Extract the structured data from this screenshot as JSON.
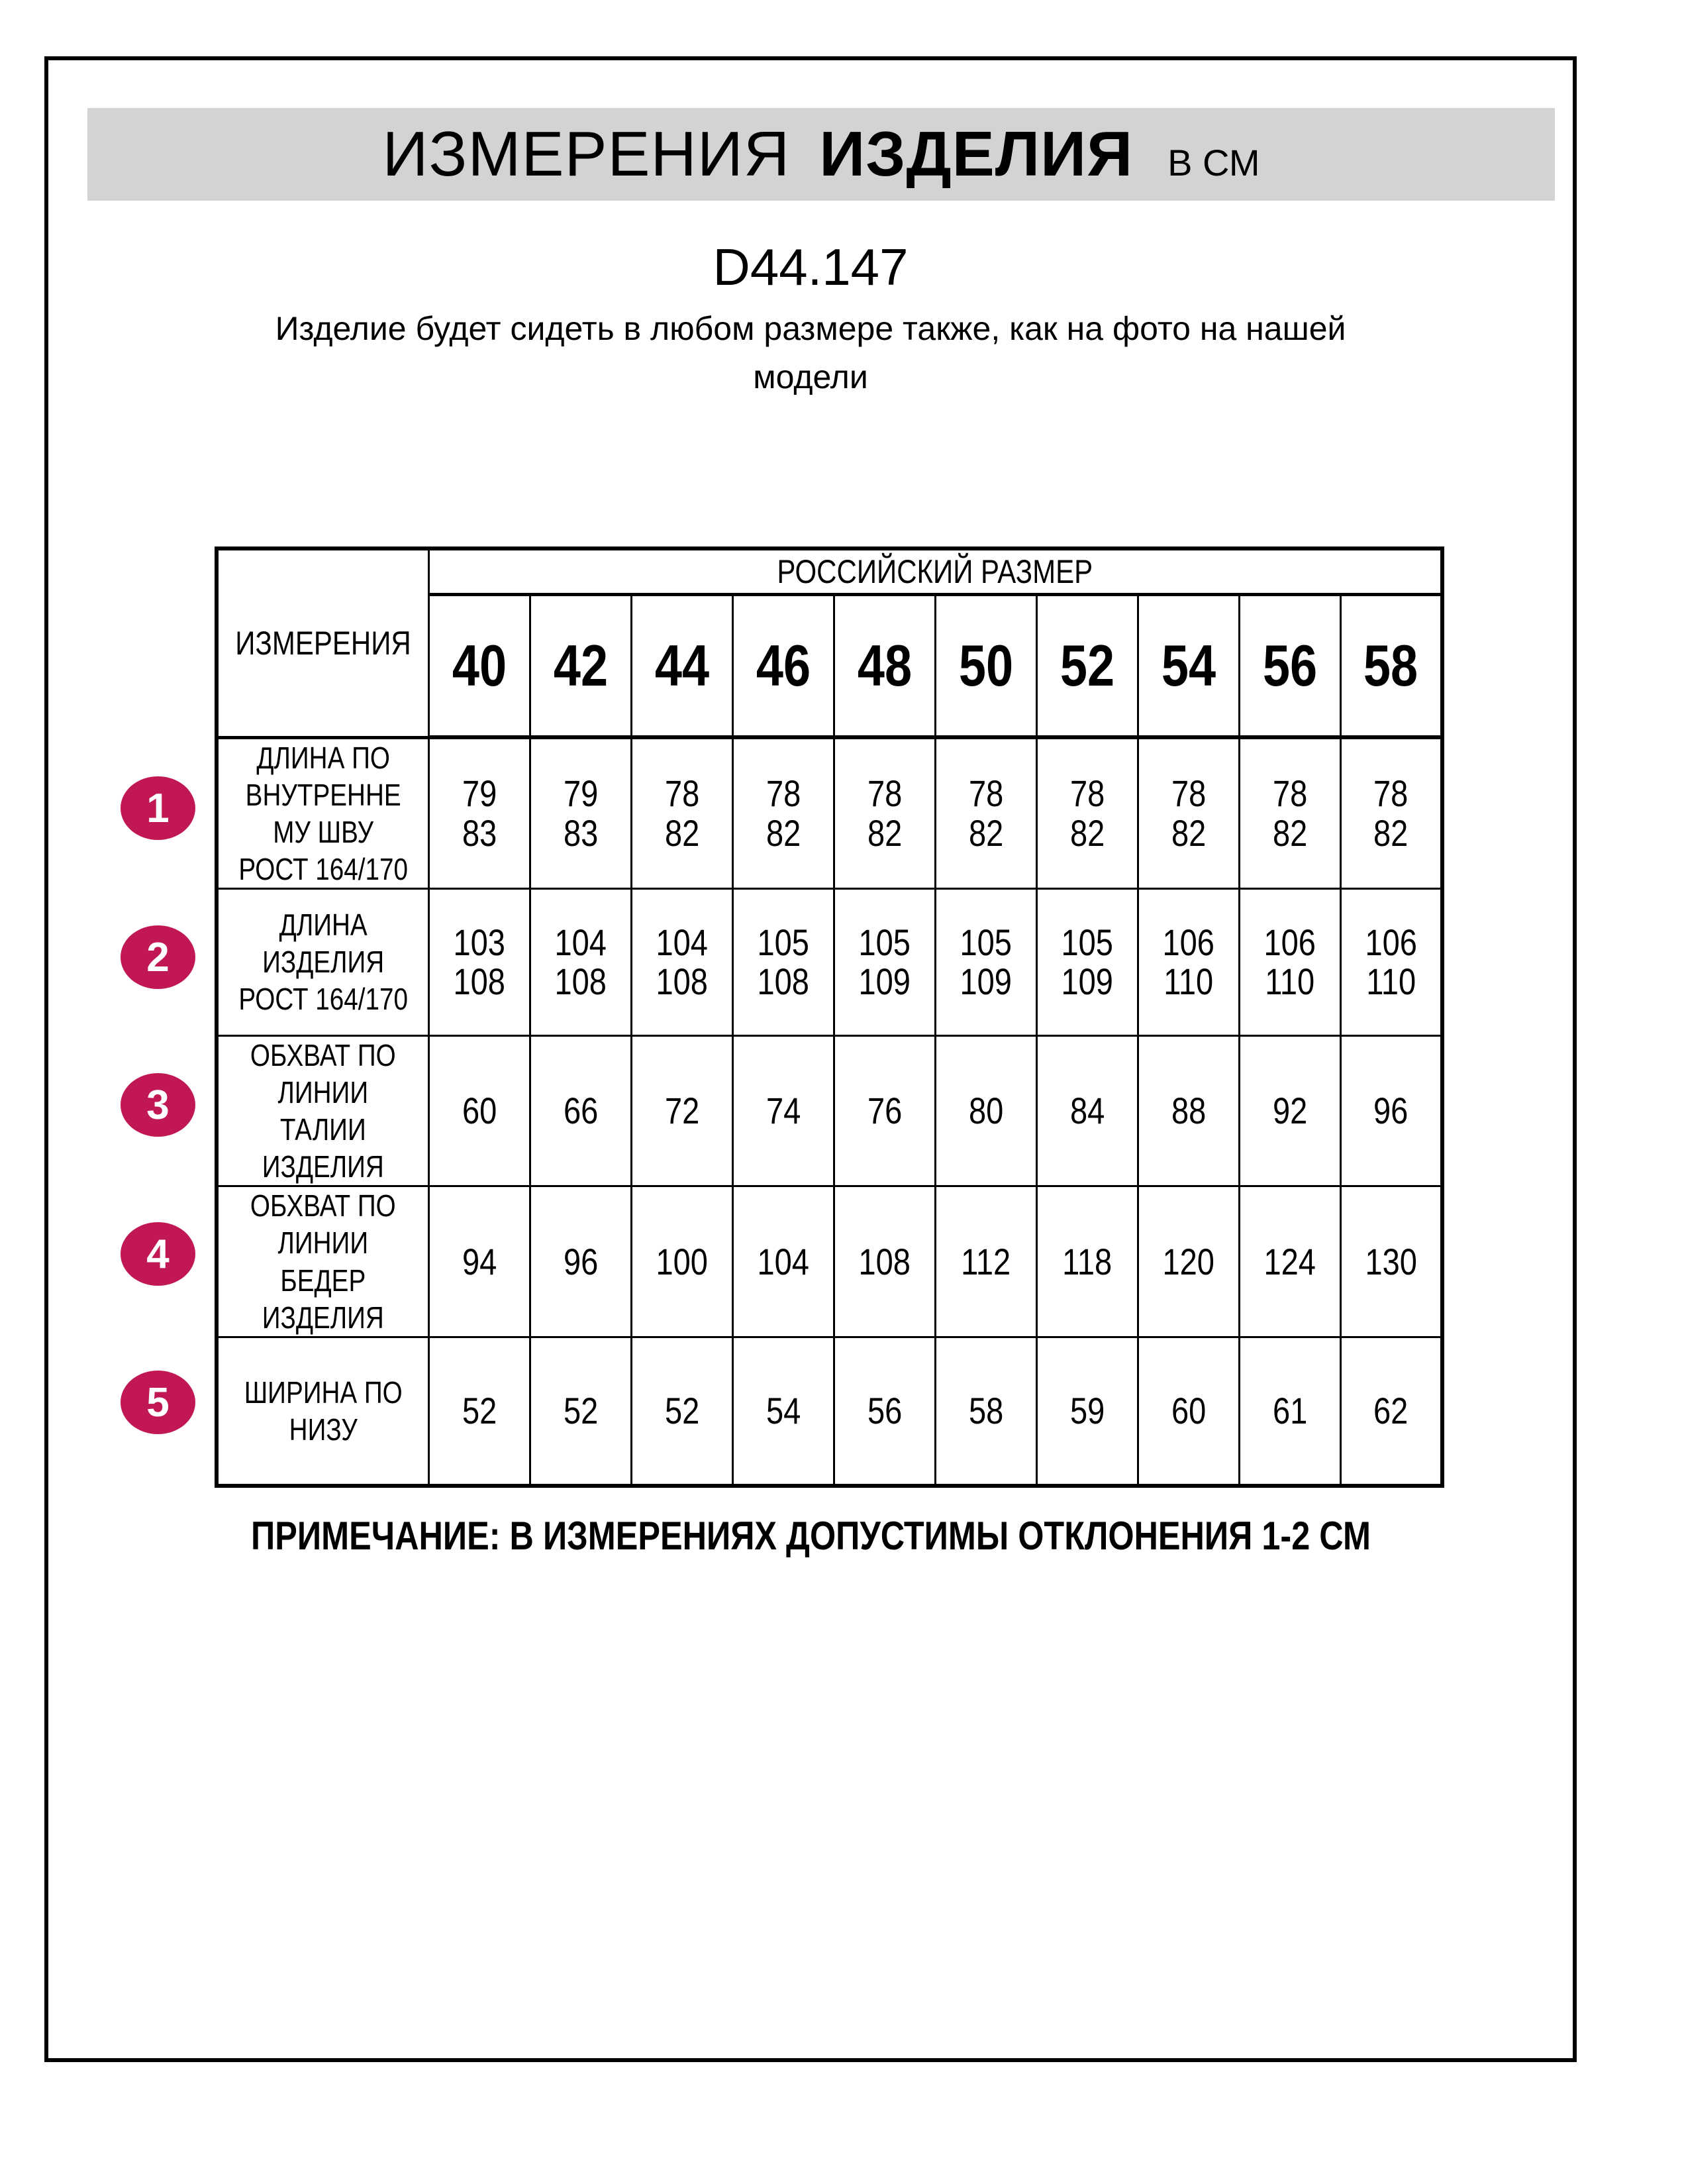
{
  "header": {
    "title_word1": "ИЗМЕРЕНИЯ",
    "title_word2": "ИЗДЕЛИЯ",
    "title_unit": "В СМ",
    "product_code": "D44.147",
    "description": "Изделие будет сидеть в любом размере также, как на фото на нашей\nмодели"
  },
  "table": {
    "corner_header": "ИЗМЕРЕНИЯ",
    "size_group_header": "РОССИЙСКИЙ РАЗМЕР",
    "sizes": [
      "40",
      "42",
      "44",
      "46",
      "48",
      "50",
      "52",
      "54",
      "56",
      "58"
    ],
    "rows": [
      {
        "num": "1",
        "label": "ДЛИНА ПО\nВНУТРЕННЕ\nМУ ШВУ\nРОСТ 164/170",
        "values": [
          "79\n83",
          "79\n83",
          "78\n82",
          "78\n82",
          "78\n82",
          "78\n82",
          "78\n82",
          "78\n82",
          "78\n82",
          "78\n82"
        ]
      },
      {
        "num": "2",
        "label": "ДЛИНА\nИЗДЕЛИЯ\nРОСТ 164/170",
        "values": [
          "103\n108",
          "104\n108",
          "104\n108",
          "105\n108",
          "105\n109",
          "105\n109",
          "105\n109",
          "106\n110",
          "106\n110",
          "106\n110"
        ]
      },
      {
        "num": "3",
        "label": "ОБХВАТ ПО\nЛИНИИ\nТАЛИИ\nИЗДЕЛИЯ",
        "values": [
          "60",
          "66",
          "72",
          "74",
          "76",
          "80",
          "84",
          "88",
          "92",
          "96"
        ]
      },
      {
        "num": "4",
        "label": "ОБХВАТ ПО\nЛИНИИ\nБЕДЕР\nИЗДЕЛИЯ",
        "values": [
          "94",
          "96",
          "100",
          "104",
          "108",
          "112",
          "118",
          "120",
          "124",
          "130"
        ]
      },
      {
        "num": "5",
        "label": "ШИРИНА ПО\nНИЗУ",
        "values": [
          "52",
          "52",
          "52",
          "54",
          "56",
          "58",
          "59",
          "60",
          "61",
          "62"
        ]
      }
    ]
  },
  "footer": {
    "note": "ПРИМЕЧАНИЕ: В ИЗМЕРЕНИЯХ ДОПУСТИМЫ ОТКЛОНЕНИЯ 1-2 СМ"
  },
  "colors": {
    "accent": "#c11855",
    "banner_background": "#d3d3d3",
    "border": "#000000"
  }
}
